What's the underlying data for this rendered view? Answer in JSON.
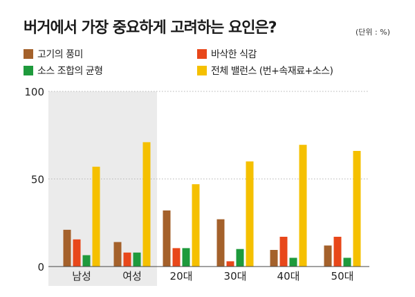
{
  "title": "버거에서 가장 중요하게 고려하는 요인은?",
  "unit": "(단위 : %)",
  "colors": {
    "flavor": "#a4612b",
    "crispy": "#e8471a",
    "balance_sauce": "#1e9a3c",
    "overall": "#f5c000",
    "highlight_bg": "#ebebeb",
    "grid": "#b5b5b5",
    "axis": "#444444"
  },
  "chart_data": {
    "type": "bar",
    "title": "버거에서 가장 중요하게 고려하는 요인은?",
    "unit": "%",
    "categories": [
      "남성",
      "여성",
      "20대",
      "30대",
      "40대",
      "50대"
    ],
    "series": [
      {
        "name": "고기의 풍미",
        "values": [
          21,
          14,
          32,
          27,
          9.5,
          12
        ]
      },
      {
        "name": "바삭한 식감",
        "values": [
          15.5,
          8,
          10.5,
          3,
          17,
          17
        ]
      },
      {
        "name": "소스 조합의 균형",
        "values": [
          6.5,
          8,
          10.5,
          10,
          5,
          5
        ]
      },
      {
        "name": "전체 밸런스 (번+속재료+소스)",
        "values": [
          57,
          71,
          47,
          60,
          69.5,
          66
        ]
      }
    ],
    "ylim": [
      0,
      100
    ],
    "yticks": [
      0,
      50,
      100
    ],
    "highlighted_categories": [
      "남성",
      "여성"
    ],
    "xlabel": "",
    "ylabel": ""
  }
}
